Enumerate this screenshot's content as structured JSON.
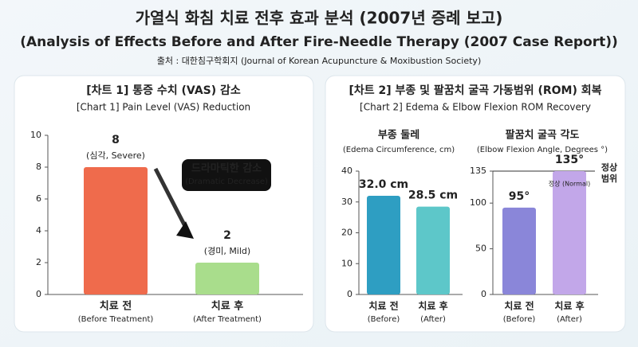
{
  "header": {
    "title": "가열식 화침 치료 전후 효과 분석 (2007년 증례 보고)",
    "subtitle": "(Analysis of Effects Before and After Fire-Needle Therapy (2007 Case Report))",
    "source": "출처 : 대한침구학회지 (Journal of Korean Acupuncture & Moxibustion Society)"
  },
  "panels": [
    {
      "title": "[차트 1] 통증 수치 (VAS) 감소",
      "subtitle": "[Chart 1] Pain Level (VAS) Reduction"
    },
    {
      "title": "[차트 2] 부종 및 팔꿈치 굴곡 가동범위 (ROM) 회복",
      "subtitle": "[Chart 2] Edema & Elbow Flexion ROM Recovery"
    }
  ],
  "chart_data": [
    {
      "type": "bar",
      "categories": [
        "치료 전",
        "치료 후"
      ],
      "category_notes": [
        "(Before Treatment)",
        "(After Treatment)"
      ],
      "values": [
        8,
        2
      ],
      "annotations": [
        "(심각, Severe)",
        "(경미, Mild)"
      ],
      "colors": [
        "#ef6b4c",
        "#a9dd8c"
      ],
      "ylim": [
        0,
        10
      ],
      "yticks": [
        0,
        2,
        4,
        6,
        8,
        10
      ],
      "grid": false,
      "callout": [
        "드라마틱한 감소",
        "(Dramatic Decrease)"
      ]
    },
    {
      "type": "bar",
      "title": "부종 둘레",
      "subtitle": "(Edema Circumference, cm)",
      "categories": [
        "치료 전",
        "치료 후"
      ],
      "category_notes": [
        "(Before)",
        "(After)"
      ],
      "values": [
        32.0,
        28.5
      ],
      "value_labels": [
        "32.0 cm",
        "28.5 cm"
      ],
      "colors": [
        "#2e9ec2",
        "#5dc7c9"
      ],
      "ylim": [
        0,
        40
      ],
      "yticks": [
        0,
        10,
        20,
        30,
        40
      ],
      "grid": false
    },
    {
      "type": "bar",
      "title": "팔꿈치 굴곡 각도",
      "subtitle": "(Elbow Flexion Angle, Degrees °)",
      "categories": [
        "치료 전",
        "치료 후"
      ],
      "category_notes": [
        "(Before)",
        "(After)"
      ],
      "values": [
        95,
        135
      ],
      "value_labels": [
        "95°",
        "135°"
      ],
      "colors": [
        "#8a86d9",
        "#c2a7e9"
      ],
      "annotations": [
        null,
        "정상 (Normal)"
      ],
      "ylim": [
        0,
        135
      ],
      "yticks": [
        0,
        50,
        100,
        135
      ],
      "grid": false,
      "reference": {
        "value": 135,
        "label": [
          "정상",
          "범위"
        ]
      }
    }
  ]
}
